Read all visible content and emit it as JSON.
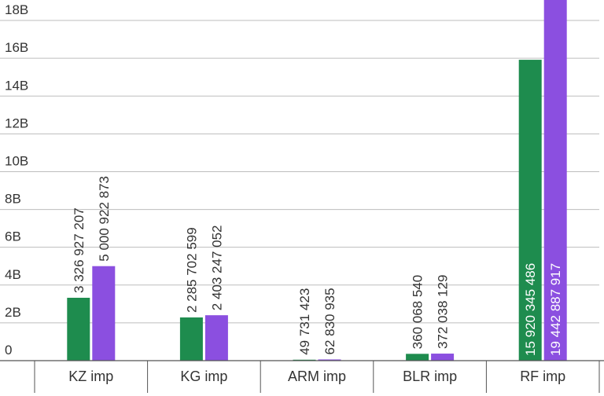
{
  "chart_data": {
    "type": "bar",
    "categories": [
      "KZ imp",
      "KG imp",
      "ARM imp",
      "BLR imp",
      "RF imp"
    ],
    "series": [
      {
        "color": "#1e8c4e",
        "values": [
          3326927207,
          2285702599,
          49731423,
          360068540,
          15920345486
        ],
        "labels": [
          "3 326 927 207",
          "2 285 702 599",
          "49 731 423",
          "360 068 540",
          "15 920 345 486"
        ]
      },
      {
        "color": "#8b4fe0",
        "values": [
          5000922873,
          2403247052,
          62830935,
          372038129,
          19442887917
        ],
        "labels": [
          "5 000 922 873",
          "2 403 247 052",
          "62 830 935",
          "372 038 129",
          "19 442 887 917"
        ]
      }
    ],
    "ylim": [
      0,
      19000000000
    ],
    "yticks": [
      {
        "value": 0,
        "label": "0"
      },
      {
        "value": 2000000000,
        "label": "2B"
      },
      {
        "value": 4000000000,
        "label": "4B"
      },
      {
        "value": 6000000000,
        "label": "6B"
      },
      {
        "value": 8000000000,
        "label": "8B"
      },
      {
        "value": 10000000000,
        "label": "10B"
      },
      {
        "value": 12000000000,
        "label": "12B"
      },
      {
        "value": 14000000000,
        "label": "14B"
      },
      {
        "value": 16000000000,
        "label": "16B"
      },
      {
        "value": 18000000000,
        "label": "18B"
      }
    ],
    "grid": true,
    "legend": "none"
  }
}
